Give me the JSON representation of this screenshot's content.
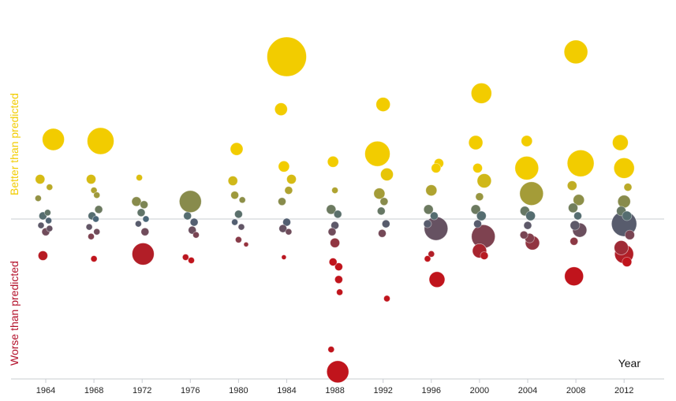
{
  "chart_data": {
    "type": "scatter",
    "title": "",
    "xlabel": "Year",
    "ylabel_top": "Better than predicted",
    "ylabel_bottom": "Worse than predicted",
    "ylim": [
      -1,
      1
    ],
    "colors": {
      "better": "#f2cc00",
      "worse": "#c0141c",
      "neutral": "#4a6678"
    },
    "years": [
      1964,
      1968,
      1972,
      1976,
      1980,
      1984,
      1988,
      1992,
      1996,
      2000,
      2004,
      2008,
      2012
    ],
    "points": [
      {
        "year": 1964,
        "dx": 0.8,
        "y": 0.5,
        "r": 14
      },
      {
        "year": 1964,
        "dx": -0.6,
        "y": 0.25,
        "r": 6
      },
      {
        "year": 1964,
        "dx": 0.4,
        "y": 0.2,
        "r": 4
      },
      {
        "year": 1964,
        "dx": -0.8,
        "y": 0.13,
        "r": 4
      },
      {
        "year": 1964,
        "dx": 0.2,
        "y": 0.04,
        "r": 4
      },
      {
        "year": 1964,
        "dx": -0.3,
        "y": 0.02,
        "r": 5
      },
      {
        "year": 1964,
        "dx": 0.3,
        "y": -0.01,
        "r": 4
      },
      {
        "year": 1964,
        "dx": -0.5,
        "y": -0.04,
        "r": 4
      },
      {
        "year": 1964,
        "dx": 0.0,
        "y": -0.08,
        "r": 5
      },
      {
        "year": 1964,
        "dx": 0.4,
        "y": -0.06,
        "r": 4
      },
      {
        "year": 1964,
        "dx": -0.3,
        "y": -0.23,
        "r": 6
      },
      {
        "year": 1968,
        "dx": 0.7,
        "y": 0.49,
        "r": 17
      },
      {
        "year": 1968,
        "dx": -0.3,
        "y": 0.25,
        "r": 6
      },
      {
        "year": 1968,
        "dx": 0.0,
        "y": 0.18,
        "r": 4
      },
      {
        "year": 1968,
        "dx": 0.3,
        "y": 0.15,
        "r": 4
      },
      {
        "year": 1968,
        "dx": 0.5,
        "y": 0.06,
        "r": 5
      },
      {
        "year": 1968,
        "dx": -0.2,
        "y": 0.02,
        "r": 5
      },
      {
        "year": 1968,
        "dx": 0.2,
        "y": 0.0,
        "r": 4
      },
      {
        "year": 1968,
        "dx": -0.5,
        "y": -0.05,
        "r": 4
      },
      {
        "year": 1968,
        "dx": 0.3,
        "y": -0.08,
        "r": 4
      },
      {
        "year": 1968,
        "dx": -0.3,
        "y": -0.11,
        "r": 4
      },
      {
        "year": 1968,
        "dx": 0.0,
        "y": -0.25,
        "r": 4
      },
      {
        "year": 1972,
        "dx": -0.3,
        "y": 0.26,
        "r": 4
      },
      {
        "year": 1972,
        "dx": -0.6,
        "y": 0.11,
        "r": 6
      },
      {
        "year": 1972,
        "dx": 0.2,
        "y": 0.09,
        "r": 5
      },
      {
        "year": 1972,
        "dx": -0.1,
        "y": 0.04,
        "r": 5
      },
      {
        "year": 1972,
        "dx": 0.4,
        "y": 0.0,
        "r": 4
      },
      {
        "year": 1972,
        "dx": -0.4,
        "y": -0.03,
        "r": 4
      },
      {
        "year": 1972,
        "dx": 0.3,
        "y": -0.08,
        "r": 5
      },
      {
        "year": 1972,
        "dx": 0.1,
        "y": -0.22,
        "r": 14
      },
      {
        "year": 1976,
        "dx": 0.0,
        "y": 0.11,
        "r": 14
      },
      {
        "year": 1976,
        "dx": -0.3,
        "y": 0.02,
        "r": 5
      },
      {
        "year": 1976,
        "dx": 0.4,
        "y": -0.02,
        "r": 5
      },
      {
        "year": 1976,
        "dx": 0.2,
        "y": -0.07,
        "r": 5
      },
      {
        "year": 1976,
        "dx": 0.6,
        "y": -0.1,
        "r": 4
      },
      {
        "year": 1976,
        "dx": -0.5,
        "y": -0.24,
        "r": 4
      },
      {
        "year": 1976,
        "dx": 0.1,
        "y": -0.26,
        "r": 4
      },
      {
        "year": 1980,
        "dx": -0.2,
        "y": 0.44,
        "r": 8
      },
      {
        "year": 1980,
        "dx": -0.6,
        "y": 0.24,
        "r": 6
      },
      {
        "year": 1980,
        "dx": -0.4,
        "y": 0.15,
        "r": 5
      },
      {
        "year": 1980,
        "dx": 0.4,
        "y": 0.12,
        "r": 4
      },
      {
        "year": 1980,
        "dx": 0.0,
        "y": 0.03,
        "r": 5
      },
      {
        "year": 1980,
        "dx": -0.4,
        "y": -0.02,
        "r": 4
      },
      {
        "year": 1980,
        "dx": 0.3,
        "y": -0.05,
        "r": 4
      },
      {
        "year": 1980,
        "dx": 0.0,
        "y": -0.13,
        "r": 4
      },
      {
        "year": 1980,
        "dx": 0.8,
        "y": -0.16,
        "r": 3
      },
      {
        "year": 1984,
        "dx": 0.0,
        "y": 1.02,
        "r": 25
      },
      {
        "year": 1984,
        "dx": -0.6,
        "y": 0.69,
        "r": 8
      },
      {
        "year": 1984,
        "dx": -0.3,
        "y": 0.33,
        "r": 7
      },
      {
        "year": 1984,
        "dx": 0.5,
        "y": 0.25,
        "r": 6
      },
      {
        "year": 1984,
        "dx": 0.2,
        "y": 0.18,
        "r": 5
      },
      {
        "year": 1984,
        "dx": -0.5,
        "y": 0.11,
        "r": 5
      },
      {
        "year": 1984,
        "dx": 0.0,
        "y": -0.02,
        "r": 5
      },
      {
        "year": 1984,
        "dx": -0.4,
        "y": -0.06,
        "r": 5
      },
      {
        "year": 1984,
        "dx": 0.2,
        "y": -0.08,
        "r": 4
      },
      {
        "year": 1984,
        "dx": -0.3,
        "y": -0.24,
        "r": 3
      },
      {
        "year": 1988,
        "dx": -0.2,
        "y": 0.36,
        "r": 7
      },
      {
        "year": 1988,
        "dx": 0.0,
        "y": 0.18,
        "r": 4
      },
      {
        "year": 1988,
        "dx": -0.4,
        "y": 0.06,
        "r": 6
      },
      {
        "year": 1988,
        "dx": 0.3,
        "y": 0.03,
        "r": 5
      },
      {
        "year": 1988,
        "dx": 0.0,
        "y": -0.04,
        "r": 5
      },
      {
        "year": 1988,
        "dx": -0.3,
        "y": -0.08,
        "r": 5
      },
      {
        "year": 1988,
        "dx": 0.0,
        "y": -0.15,
        "r": 6
      },
      {
        "year": 1988,
        "dx": 0.4,
        "y": -0.3,
        "r": 5
      },
      {
        "year": 1988,
        "dx": -0.2,
        "y": -0.27,
        "r": 5
      },
      {
        "year": 1988,
        "dx": 0.4,
        "y": -0.38,
        "r": 5
      },
      {
        "year": 1988,
        "dx": 0.5,
        "y": -0.46,
        "r": 4
      },
      {
        "year": 1988,
        "dx": -0.4,
        "y": -0.82,
        "r": 4
      },
      {
        "year": 1988,
        "dx": 0.3,
        "y": -0.96,
        "r": 14
      },
      {
        "year": 1992,
        "dx": 0.0,
        "y": 0.72,
        "r": 9
      },
      {
        "year": 1992,
        "dx": -0.6,
        "y": 0.41,
        "r": 16
      },
      {
        "year": 1992,
        "dx": 0.4,
        "y": 0.28,
        "r": 8
      },
      {
        "year": 1992,
        "dx": -0.4,
        "y": 0.16,
        "r": 7
      },
      {
        "year": 1992,
        "dx": 0.1,
        "y": 0.11,
        "r": 5
      },
      {
        "year": 1992,
        "dx": -0.2,
        "y": 0.05,
        "r": 5
      },
      {
        "year": 1992,
        "dx": 0.3,
        "y": -0.03,
        "r": 5
      },
      {
        "year": 1992,
        "dx": -0.1,
        "y": -0.09,
        "r": 5
      },
      {
        "year": 1992,
        "dx": 0.4,
        "y": -0.5,
        "r": 4
      },
      {
        "year": 1996,
        "dx": 0.8,
        "y": 0.35,
        "r": 6
      },
      {
        "year": 1996,
        "dx": 0.5,
        "y": 0.32,
        "r": 6
      },
      {
        "year": 1996,
        "dx": 0.0,
        "y": 0.18,
        "r": 7
      },
      {
        "year": 1996,
        "dx": -0.3,
        "y": 0.06,
        "r": 6
      },
      {
        "year": 1996,
        "dx": 0.3,
        "y": 0.02,
        "r": 5
      },
      {
        "year": 1996,
        "dx": -0.4,
        "y": -0.03,
        "r": 5
      },
      {
        "year": 1996,
        "dx": 0.5,
        "y": -0.06,
        "r": 15
      },
      {
        "year": 1996,
        "dx": -0.4,
        "y": -0.25,
        "r": 4
      },
      {
        "year": 1996,
        "dx": 0.0,
        "y": -0.22,
        "r": 4
      },
      {
        "year": 1996,
        "dx": 0.6,
        "y": -0.38,
        "r": 10
      },
      {
        "year": 2000,
        "dx": 0.2,
        "y": 0.79,
        "r": 13
      },
      {
        "year": 2000,
        "dx": -0.4,
        "y": 0.48,
        "r": 9
      },
      {
        "year": 2000,
        "dx": -0.2,
        "y": 0.32,
        "r": 6
      },
      {
        "year": 2000,
        "dx": 0.5,
        "y": 0.24,
        "r": 9
      },
      {
        "year": 2000,
        "dx": 0.0,
        "y": 0.14,
        "r": 5
      },
      {
        "year": 2000,
        "dx": -0.4,
        "y": 0.06,
        "r": 6
      },
      {
        "year": 2000,
        "dx": 0.2,
        "y": 0.02,
        "r": 6
      },
      {
        "year": 2000,
        "dx": -0.2,
        "y": -0.03,
        "r": 5
      },
      {
        "year": 2000,
        "dx": 0.4,
        "y": -0.11,
        "r": 15
      },
      {
        "year": 2000,
        "dx": 0.0,
        "y": -0.2,
        "r": 9
      },
      {
        "year": 2000,
        "dx": 0.5,
        "y": -0.23,
        "r": 5
      },
      {
        "year": 2004,
        "dx": -0.1,
        "y": 0.49,
        "r": 7
      },
      {
        "year": 2004,
        "dx": -0.1,
        "y": 0.32,
        "r": 15
      },
      {
        "year": 2004,
        "dx": 0.4,
        "y": 0.16,
        "r": 15
      },
      {
        "year": 2004,
        "dx": -0.3,
        "y": 0.05,
        "r": 6
      },
      {
        "year": 2004,
        "dx": 0.3,
        "y": 0.02,
        "r": 6
      },
      {
        "year": 2004,
        "dx": 0.0,
        "y": -0.04,
        "r": 5
      },
      {
        "year": 2004,
        "dx": -0.4,
        "y": -0.1,
        "r": 5
      },
      {
        "year": 2004,
        "dx": 0.5,
        "y": -0.15,
        "r": 9
      },
      {
        "year": 2004,
        "dx": 0.2,
        "y": -0.12,
        "r": 6
      },
      {
        "year": 2008,
        "dx": 0.0,
        "y": 1.05,
        "r": 15
      },
      {
        "year": 2008,
        "dx": 0.5,
        "y": 0.35,
        "r": 17
      },
      {
        "year": 2008,
        "dx": -0.4,
        "y": 0.21,
        "r": 6
      },
      {
        "year": 2008,
        "dx": 0.3,
        "y": 0.12,
        "r": 7
      },
      {
        "year": 2008,
        "dx": -0.3,
        "y": 0.07,
        "r": 6
      },
      {
        "year": 2008,
        "dx": 0.2,
        "y": 0.02,
        "r": 5
      },
      {
        "year": 2008,
        "dx": -0.1,
        "y": -0.04,
        "r": 6
      },
      {
        "year": 2008,
        "dx": 0.4,
        "y": -0.07,
        "r": 9
      },
      {
        "year": 2008,
        "dx": -0.2,
        "y": -0.14,
        "r": 5
      },
      {
        "year": 2008,
        "dx": -0.2,
        "y": -0.36,
        "r": 12
      },
      {
        "year": 2012,
        "dx": -0.4,
        "y": 0.48,
        "r": 10
      },
      {
        "year": 2012,
        "dx": 0.0,
        "y": 0.32,
        "r": 13
      },
      {
        "year": 2012,
        "dx": 0.4,
        "y": 0.2,
        "r": 5
      },
      {
        "year": 2012,
        "dx": 0.0,
        "y": 0.11,
        "r": 8
      },
      {
        "year": 2012,
        "dx": -0.3,
        "y": 0.05,
        "r": 6
      },
      {
        "year": 2012,
        "dx": 0.3,
        "y": 0.02,
        "r": 6
      },
      {
        "year": 2012,
        "dx": 0.0,
        "y": -0.03,
        "r": 16
      },
      {
        "year": 2012,
        "dx": -0.3,
        "y": -0.18,
        "r": 9
      },
      {
        "year": 2012,
        "dx": 0.0,
        "y": -0.22,
        "r": 12
      },
      {
        "year": 2012,
        "dx": 0.3,
        "y": -0.27,
        "r": 6
      },
      {
        "year": 2012,
        "dx": 0.6,
        "y": -0.1,
        "r": 6
      }
    ]
  }
}
